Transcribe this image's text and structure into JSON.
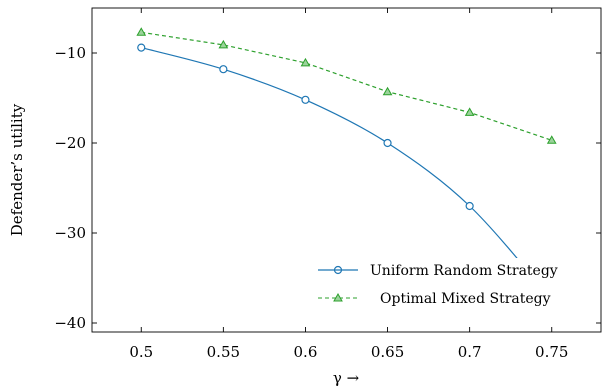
{
  "chart_data": {
    "type": "line",
    "xlabel": "γ →",
    "ylabel": "Defender’s utility",
    "xlim": [
      0.47,
      0.78
    ],
    "ylim": [
      -41,
      -5
    ],
    "x_ticks": [
      0.5,
      0.55,
      0.6,
      0.65,
      0.7,
      0.75
    ],
    "x_tick_labels": [
      "0.5",
      "0.55",
      "0.6",
      "0.65",
      "0.7",
      "0.75"
    ],
    "y_ticks": [
      -10,
      -20,
      -30,
      -40
    ],
    "y_tick_labels": [
      "−10",
      "−20",
      "−30",
      "−40"
    ],
    "grid": false,
    "legend_position": "bottom-right",
    "x": [
      0.5,
      0.55,
      0.6,
      0.65,
      0.7,
      0.75
    ],
    "series": [
      {
        "name": "Uniform Random Strategy",
        "values": [
          -9.4,
          -11.8,
          -15.2,
          -20.0,
          -27.0,
          -37.4
        ],
        "color": "#1f77b4",
        "line_style": "solid",
        "marker": "circle",
        "smooth": true
      },
      {
        "name": "Optimal Mixed Strategy",
        "values": [
          -7.7,
          -9.1,
          -11.1,
          -14.3,
          -16.6,
          -19.7
        ],
        "color": "#2ca02c",
        "line_style": "dashed",
        "marker": "triangle",
        "smooth": false
      }
    ]
  }
}
